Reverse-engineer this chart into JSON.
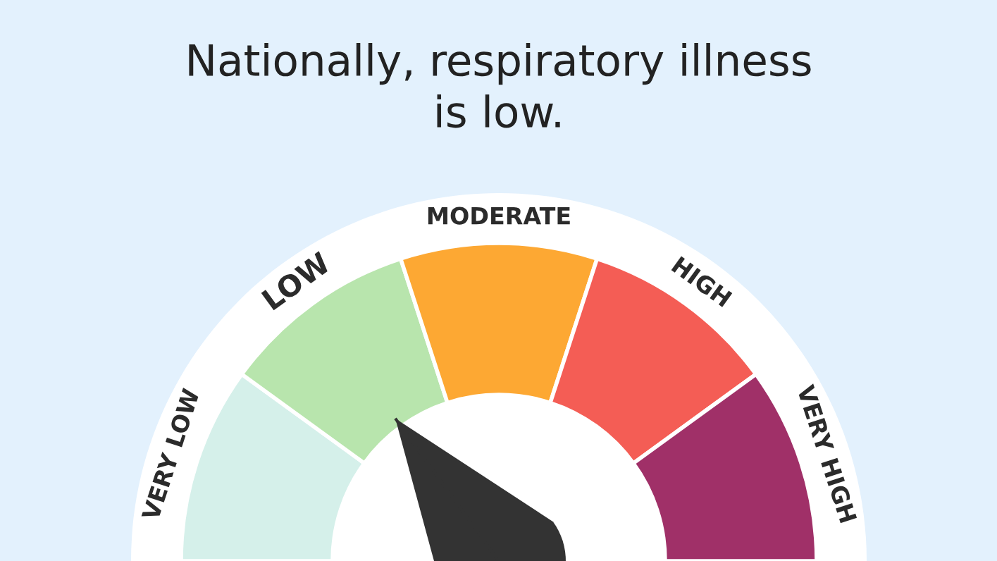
{
  "chart_data": {
    "type": "donut",
    "title": "Nationally, respiratory illness is low.",
    "categories": [
      "VERY LOW",
      "LOW",
      "MODERATE",
      "HIGH",
      "VERY HIGH"
    ],
    "values": [
      20,
      20,
      20,
      20,
      20
    ],
    "colors": [
      "#d5f0ea",
      "#b8e5ad",
      "#fda833",
      "#f45d55",
      "#a03068"
    ],
    "needle": "LOW"
  }
}
